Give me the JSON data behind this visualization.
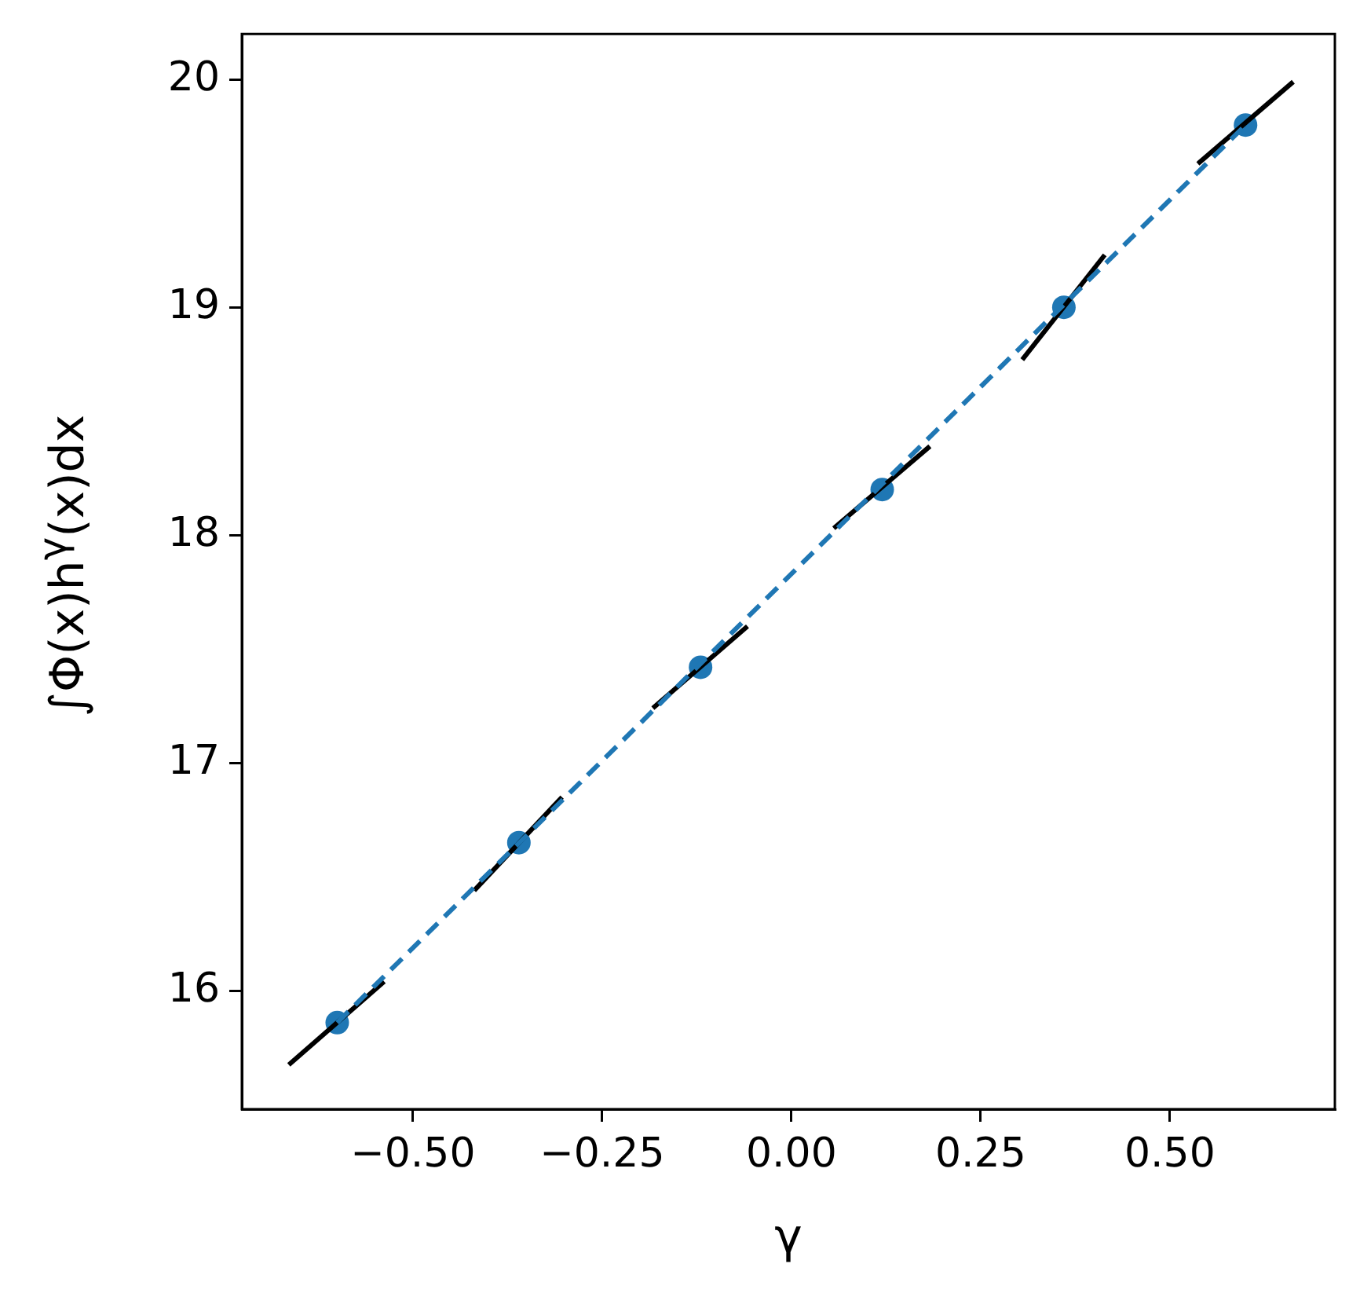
{
  "chart_data": {
    "type": "scatter",
    "xlabel": "γ",
    "ylabel": "∫Φ(x)h$^{γ}$(x)dx",
    "xlim": [
      -0.726,
      0.718
    ],
    "ylim": [
      15.48,
      20.2
    ],
    "xticks": [
      {
        "value": -0.5,
        "label": "−0.50"
      },
      {
        "value": -0.25,
        "label": "−0.25"
      },
      {
        "value": 0,
        "label": "0.00"
      },
      {
        "value": 0.25,
        "label": "0.25"
      },
      {
        "value": 0.5,
        "label": "0.50"
      }
    ],
    "yticks": [
      16,
      17,
      18,
      19,
      20
    ],
    "grid": false,
    "legend": false,
    "marker": "circle",
    "x": [
      -0.6,
      -0.36,
      -0.12,
      0.12,
      0.36,
      0.6
    ],
    "series": [
      {
        "type": "line",
        "color": "#1f77b4",
        "line_style": "dashed",
        "marker": "none",
        "x": [
          -0.6,
          0.6
        ],
        "values": [
          15.86,
          19.8
        ]
      },
      {
        "type": "line",
        "color": "#000000",
        "line_style": "solid",
        "marker": "none",
        "x": [
          -0.664,
          -0.538
        ],
        "values": [
          15.675,
          16.04
        ]
      },
      {
        "type": "line",
        "color": "#000000",
        "line_style": "solid",
        "marker": "none",
        "x": [
          -0.419,
          -0.303
        ],
        "values": [
          16.44,
          16.85
        ]
      },
      {
        "type": "line",
        "color": "#000000",
        "line_style": "solid",
        "marker": "none",
        "x": [
          -0.183,
          -0.058
        ],
        "values": [
          17.24,
          17.6
        ]
      },
      {
        "type": "line",
        "color": "#000000",
        "line_style": "solid",
        "marker": "none",
        "x": [
          0.056,
          0.183
        ],
        "values": [
          18.03,
          18.39
        ]
      },
      {
        "type": "line",
        "color": "#000000",
        "line_style": "solid",
        "marker": "none",
        "x": [
          0.305,
          0.414
        ],
        "values": [
          18.77,
          19.23
        ]
      },
      {
        "type": "line",
        "color": "#000000",
        "line_style": "solid",
        "marker": "none",
        "x": [
          0.537,
          0.663
        ],
        "values": [
          19.63,
          19.99
        ]
      },
      {
        "color": "#1f77b4",
        "values": [
          15.86,
          16.65,
          17.42,
          18.2,
          19.0,
          19.8
        ]
      }
    ]
  }
}
